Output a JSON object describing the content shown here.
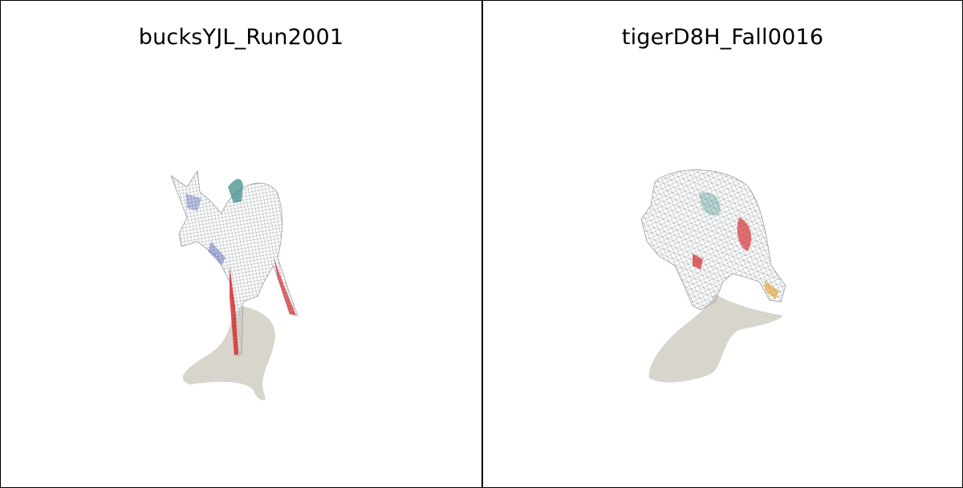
{
  "panels": [
    {
      "title": "bucksYJL_Run2001",
      "subject_icon": "deer-wireframe-icon"
    },
    {
      "title": "tigerD8H_Fall0016",
      "subject_icon": "tiger-wireframe-icon"
    }
  ],
  "colors": {
    "shadow": "#d8d5cc",
    "mesh": "#bfc3c7",
    "accent_red": "#d62828",
    "accent_teal": "#3f8f8a",
    "accent_blue": "#3a4fb0"
  }
}
